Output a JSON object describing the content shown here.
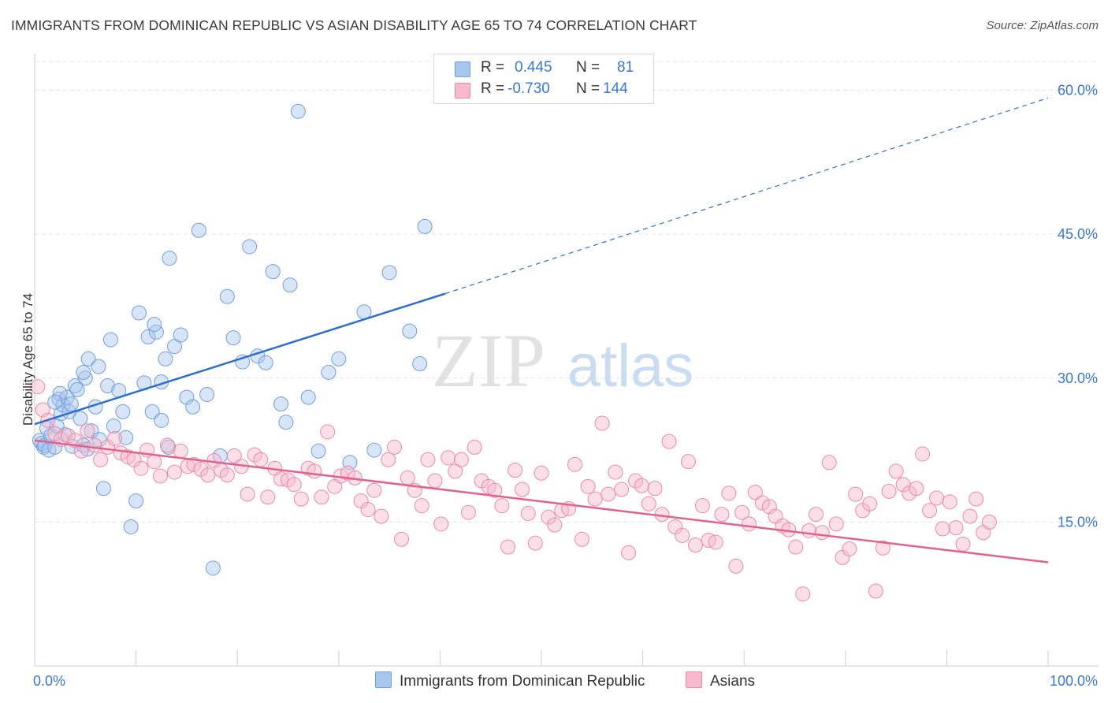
{
  "title": "IMMIGRANTS FROM DOMINICAN REPUBLIC VS ASIAN DISABILITY AGE 65 TO 74 CORRELATION CHART",
  "source": "Source: ZipAtlas.com",
  "watermark": {
    "part1": "ZIP",
    "part2": "atlas"
  },
  "legend": {
    "rows": [
      {
        "r_label": "R =",
        "r_value": "0.445",
        "n_label": "N =",
        "n_value": "81",
        "color": "#a8c6ee",
        "border": "#6f9fd9"
      },
      {
        "r_label": "R =",
        "r_value": "-0.730",
        "n_label": "N =",
        "n_value": "144",
        "color": "#f7b9cc",
        "border": "#e88aa8"
      }
    ]
  },
  "bottom_legend": [
    {
      "label": "Immigrants from Dominican Republic",
      "color": "#a8c6ee",
      "border": "#6f9fd9"
    },
    {
      "label": "Asians",
      "color": "#f7b9cc",
      "border": "#e88aa8"
    }
  ],
  "chart_data": {
    "type": "scatter",
    "title": "IMMIGRANTS FROM DOMINICAN REPUBLIC VS ASIAN DISABILITY AGE 65 TO 74 CORRELATION CHART",
    "xlabel": "",
    "ylabel": "Disability Age 65 to 74",
    "xlim": [
      0,
      100
    ],
    "ylim": [
      0,
      63
    ],
    "x_tick_labels": [
      "0.0%",
      "100.0%"
    ],
    "y_ticks": [
      15,
      30,
      45,
      60
    ],
    "y_tick_labels": [
      "15.0%",
      "30.0%",
      "45.0%",
      "60.0%"
    ],
    "grid": true,
    "legend_position": "top-center",
    "series": [
      {
        "name": "Immigrants from Dominican Republic",
        "color": "#6f9fd9",
        "fill": "#a8c6ee",
        "trend_color": "#2f6fcc",
        "R": 0.445,
        "N": 81,
        "trend": {
          "x0": 0,
          "y0": 25.2,
          "x1": 40.5,
          "y1": 38.8,
          "extend_to_x": 100,
          "extend_to_y": 59.2
        },
        "x": [
          0.5,
          0.7,
          0.9,
          1.0,
          1.2,
          1.4,
          1.6,
          2.0,
          2.2,
          2.4,
          2.6,
          2.8,
          3.0,
          3.2,
          3.4,
          3.7,
          4.0,
          4.2,
          4.5,
          4.8,
          5.0,
          5.3,
          5.6,
          6.0,
          6.3,
          6.8,
          7.2,
          7.5,
          7.8,
          8.3,
          8.7,
          9.0,
          9.5,
          10.0,
          10.3,
          10.8,
          11.2,
          11.6,
          12.0,
          12.5,
          12.9,
          13.2,
          13.8,
          14.4,
          15.0,
          15.6,
          16.2,
          17.0,
          17.6,
          18.3,
          19.0,
          19.6,
          20.5,
          21.2,
          22.0,
          22.8,
          23.5,
          24.3,
          25.2,
          26.0,
          27.0,
          28.0,
          29.0,
          30.0,
          31.1,
          32.5,
          33.5,
          35.0,
          37.0,
          38.0,
          38.5,
          11.8,
          12.5,
          3.6,
          4.8,
          6.4,
          5.2,
          13.3,
          24.8,
          2.5,
          2.0
        ],
        "y": [
          23.5,
          23.2,
          22.8,
          23.0,
          24.8,
          22.5,
          24.0,
          22.8,
          25.0,
          27.8,
          26.3,
          27.2,
          24.1,
          28.0,
          26.5,
          22.9,
          29.2,
          28.8,
          25.8,
          23.0,
          30.0,
          32.0,
          24.5,
          27.0,
          31.2,
          18.5,
          29.2,
          34.0,
          25.0,
          28.7,
          26.5,
          23.8,
          14.5,
          17.2,
          36.8,
          29.5,
          34.3,
          26.5,
          34.8,
          25.6,
          32.0,
          22.8,
          33.3,
          34.5,
          28.0,
          27.0,
          45.4,
          28.3,
          10.2,
          21.9,
          38.5,
          34.2,
          31.7,
          43.7,
          32.3,
          31.6,
          41.1,
          27.3,
          39.7,
          57.8,
          28.0,
          22.4,
          30.6,
          32.0,
          21.2,
          36.9,
          22.5,
          41.0,
          34.9,
          31.5,
          45.8,
          35.6,
          29.6,
          27.3,
          30.6,
          23.6,
          22.6,
          42.5,
          25.4,
          28.4,
          27.5
        ]
      },
      {
        "name": "Asians",
        "color": "#e88aa8",
        "fill": "#f7b9cc",
        "trend_color": "#e0628d",
        "R": -0.73,
        "N": 144,
        "trend": {
          "x0": 0,
          "y0": 23.5,
          "x1": 100,
          "y1": 10.8
        },
        "x": [
          0.3,
          0.8,
          1.3,
          2.0,
          2.6,
          3.3,
          4.0,
          4.6,
          5.2,
          5.9,
          6.5,
          7.2,
          7.9,
          8.5,
          9.2,
          9.8,
          10.5,
          11.1,
          11.8,
          12.4,
          13.1,
          13.8,
          14.4,
          15.1,
          15.7,
          16.4,
          17.1,
          17.7,
          18.4,
          19.0,
          19.7,
          20.4,
          21.0,
          21.7,
          22.3,
          23.0,
          23.7,
          24.3,
          25.0,
          25.6,
          26.3,
          27.0,
          27.6,
          28.3,
          28.9,
          29.6,
          30.2,
          30.9,
          31.6,
          32.2,
          32.9,
          33.5,
          34.2,
          34.9,
          35.5,
          36.2,
          36.8,
          37.5,
          38.2,
          38.8,
          39.5,
          40.1,
          40.8,
          41.5,
          42.1,
          42.8,
          43.4,
          44.1,
          44.8,
          45.4,
          46.1,
          46.7,
          47.4,
          48.1,
          48.7,
          49.4,
          50.0,
          50.7,
          51.3,
          52.0,
          52.7,
          53.3,
          54.0,
          54.6,
          55.3,
          56.0,
          56.6,
          57.3,
          57.9,
          58.6,
          59.3,
          59.9,
          60.6,
          61.2,
          61.9,
          62.6,
          63.2,
          63.9,
          64.5,
          65.2,
          65.9,
          66.5,
          67.2,
          67.8,
          68.5,
          69.2,
          69.8,
          70.5,
          71.1,
          71.8,
          72.5,
          73.1,
          73.8,
          74.4,
          75.1,
          75.8,
          76.4,
          77.1,
          77.7,
          78.4,
          79.1,
          79.7,
          80.4,
          81.0,
          81.7,
          82.4,
          83.0,
          83.7,
          84.3,
          85.0,
          85.7,
          86.3,
          87.0,
          87.6,
          88.3,
          89.0,
          89.6,
          90.3,
          90.9,
          91.6,
          92.3,
          92.9,
          93.6,
          94.2
        ],
        "y": [
          29.1,
          26.7,
          25.6,
          24.2,
          23.6,
          24.0,
          23.5,
          22.4,
          24.5,
          23.0,
          21.5,
          22.8,
          23.7,
          22.2,
          21.8,
          21.5,
          20.6,
          22.5,
          21.3,
          19.8,
          23.0,
          20.2,
          22.4,
          20.8,
          21.0,
          20.5,
          19.9,
          21.4,
          20.4,
          19.9,
          21.9,
          20.8,
          17.9,
          22.0,
          21.5,
          17.6,
          20.6,
          19.5,
          19.4,
          18.9,
          17.4,
          20.6,
          20.3,
          17.6,
          24.4,
          18.7,
          19.8,
          20.1,
          19.6,
          17.2,
          16.3,
          18.3,
          15.6,
          21.5,
          22.8,
          13.2,
          19.6,
          18.3,
          16.7,
          21.5,
          19.3,
          14.8,
          21.7,
          20.3,
          21.5,
          16.0,
          22.8,
          19.3,
          18.7,
          18.3,
          16.7,
          12.4,
          20.4,
          18.4,
          15.9,
          12.8,
          20.1,
          15.5,
          14.7,
          16.2,
          16.4,
          21.0,
          13.2,
          18.7,
          17.4,
          25.3,
          17.9,
          20.2,
          18.4,
          11.8,
          19.3,
          18.8,
          16.9,
          18.5,
          15.8,
          23.4,
          14.5,
          13.6,
          21.3,
          12.6,
          16.7,
          13.1,
          12.9,
          15.8,
          18.0,
          10.4,
          16.0,
          14.8,
          18.1,
          17.0,
          16.6,
          15.6,
          14.6,
          14.2,
          12.4,
          7.5,
          14.1,
          15.8,
          13.9,
          21.2,
          14.8,
          11.3,
          12.2,
          17.9,
          16.2,
          16.9,
          7.8,
          12.3,
          18.2,
          20.3,
          18.9,
          18.0,
          18.5,
          22.1,
          16.2,
          17.5,
          14.3,
          17.1,
          14.4,
          12.7,
          15.6,
          17.4,
          13.9,
          15.0
        ]
      }
    ]
  }
}
